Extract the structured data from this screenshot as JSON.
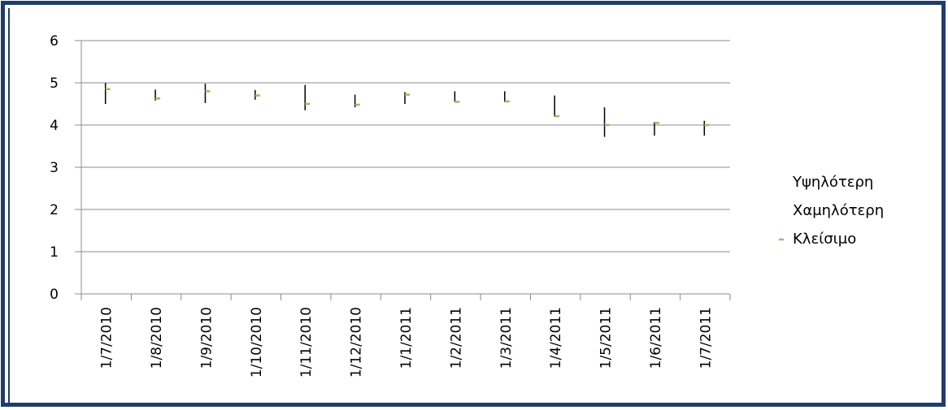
{
  "chart_data": {
    "type": "stock-hlc",
    "title": "",
    "xlabel": "",
    "ylabel": "",
    "ylim": [
      0,
      6
    ],
    "y_ticks": [
      0,
      1,
      2,
      3,
      4,
      5,
      6
    ],
    "grid": true,
    "legend_position": "right",
    "categories": [
      "1/7/2010",
      "1/8/2010",
      "1/9/2010",
      "1/10/2010",
      "1/11/2010",
      "1/12/2010",
      "1/1/2011",
      "1/2/2011",
      "1/3/2011",
      "1/4/2011",
      "1/5/2011",
      "1/6/2011",
      "1/7/2011"
    ],
    "series": [
      {
        "name": "Υψηλότερη",
        "values": [
          5.0,
          4.84,
          4.98,
          4.83,
          4.95,
          4.72,
          4.78,
          4.8,
          4.8,
          4.7,
          4.42,
          4.07,
          4.1
        ]
      },
      {
        "name": "Χαμηλότερη",
        "values": [
          4.5,
          4.58,
          4.52,
          4.6,
          4.35,
          4.42,
          4.5,
          4.55,
          4.55,
          4.2,
          3.72,
          3.75,
          3.75
        ]
      },
      {
        "name": "Κλείσιμο",
        "values": [
          4.85,
          4.63,
          4.8,
          4.7,
          4.5,
          4.48,
          4.72,
          4.55,
          4.56,
          4.21,
          4.0,
          4.05,
          4.0
        ]
      }
    ],
    "colors": {
      "high_low_line": "#000000",
      "close_marker": "#9bbb59",
      "gridline": "#8c8c8c",
      "axis": "#8c8c8c"
    }
  }
}
